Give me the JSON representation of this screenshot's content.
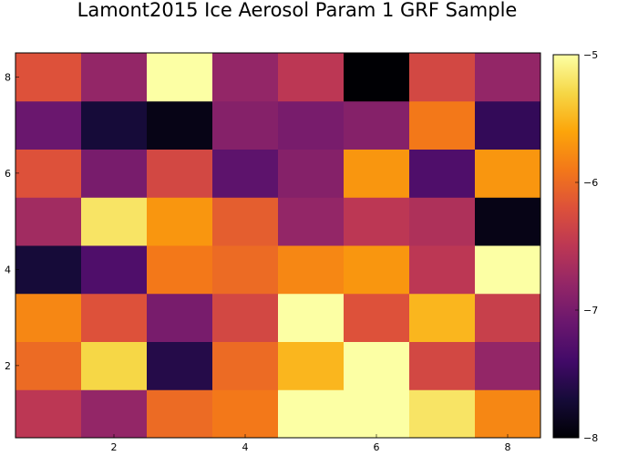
{
  "chart_data": {
    "type": "heatmap",
    "title": "Lamont2015 Ice Aerosol Param 1 GRF Sample",
    "xlabel": "",
    "ylabel": "",
    "colormap": "inferno",
    "x": [
      1,
      2,
      3,
      4,
      5,
      6,
      7,
      8
    ],
    "y": [
      1,
      2,
      3,
      4,
      5,
      6,
      7,
      8
    ],
    "xticks": [
      2,
      4,
      6,
      8
    ],
    "yticks": [
      2,
      4,
      6,
      8
    ],
    "xlim": [
      0.5,
      8.5
    ],
    "ylim": [
      0.5,
      8.5
    ],
    "clim": [
      -8,
      -5
    ],
    "colorbar_ticks": [
      -8,
      -7,
      -6,
      -5
    ],
    "colorbar_tick_labels": [
      "−8",
      "−7",
      "−6",
      "−5"
    ],
    "grid": false,
    "z": [
      [
        -6.5,
        -6.8,
        -6.0,
        -5.9,
        -5.0,
        -5.0,
        -5.2,
        -5.8
      ],
      [
        -6.0,
        -5.3,
        -7.6,
        -6.0,
        -5.5,
        -5.0,
        -6.3,
        -6.8
      ],
      [
        -5.8,
        -6.2,
        -7.0,
        -6.3,
        -5.0,
        -6.2,
        -5.5,
        -6.4
      ],
      [
        -7.7,
        -7.3,
        -5.9,
        -6.0,
        -5.8,
        -5.7,
        -6.5,
        -5.0
      ],
      [
        -6.7,
        -5.2,
        -5.7,
        -6.1,
        -6.8,
        -6.5,
        -6.6,
        -7.9
      ],
      [
        -6.2,
        -7.0,
        -6.3,
        -7.2,
        -6.9,
        -5.7,
        -7.3,
        -5.7
      ],
      [
        -7.1,
        -7.7,
        -7.9,
        -6.9,
        -7.0,
        -6.9,
        -5.9,
        -7.5
      ],
      [
        -6.2,
        -6.8,
        -5.0,
        -6.8,
        -6.5,
        -8.0,
        -6.3,
        -6.8
      ]
    ]
  }
}
